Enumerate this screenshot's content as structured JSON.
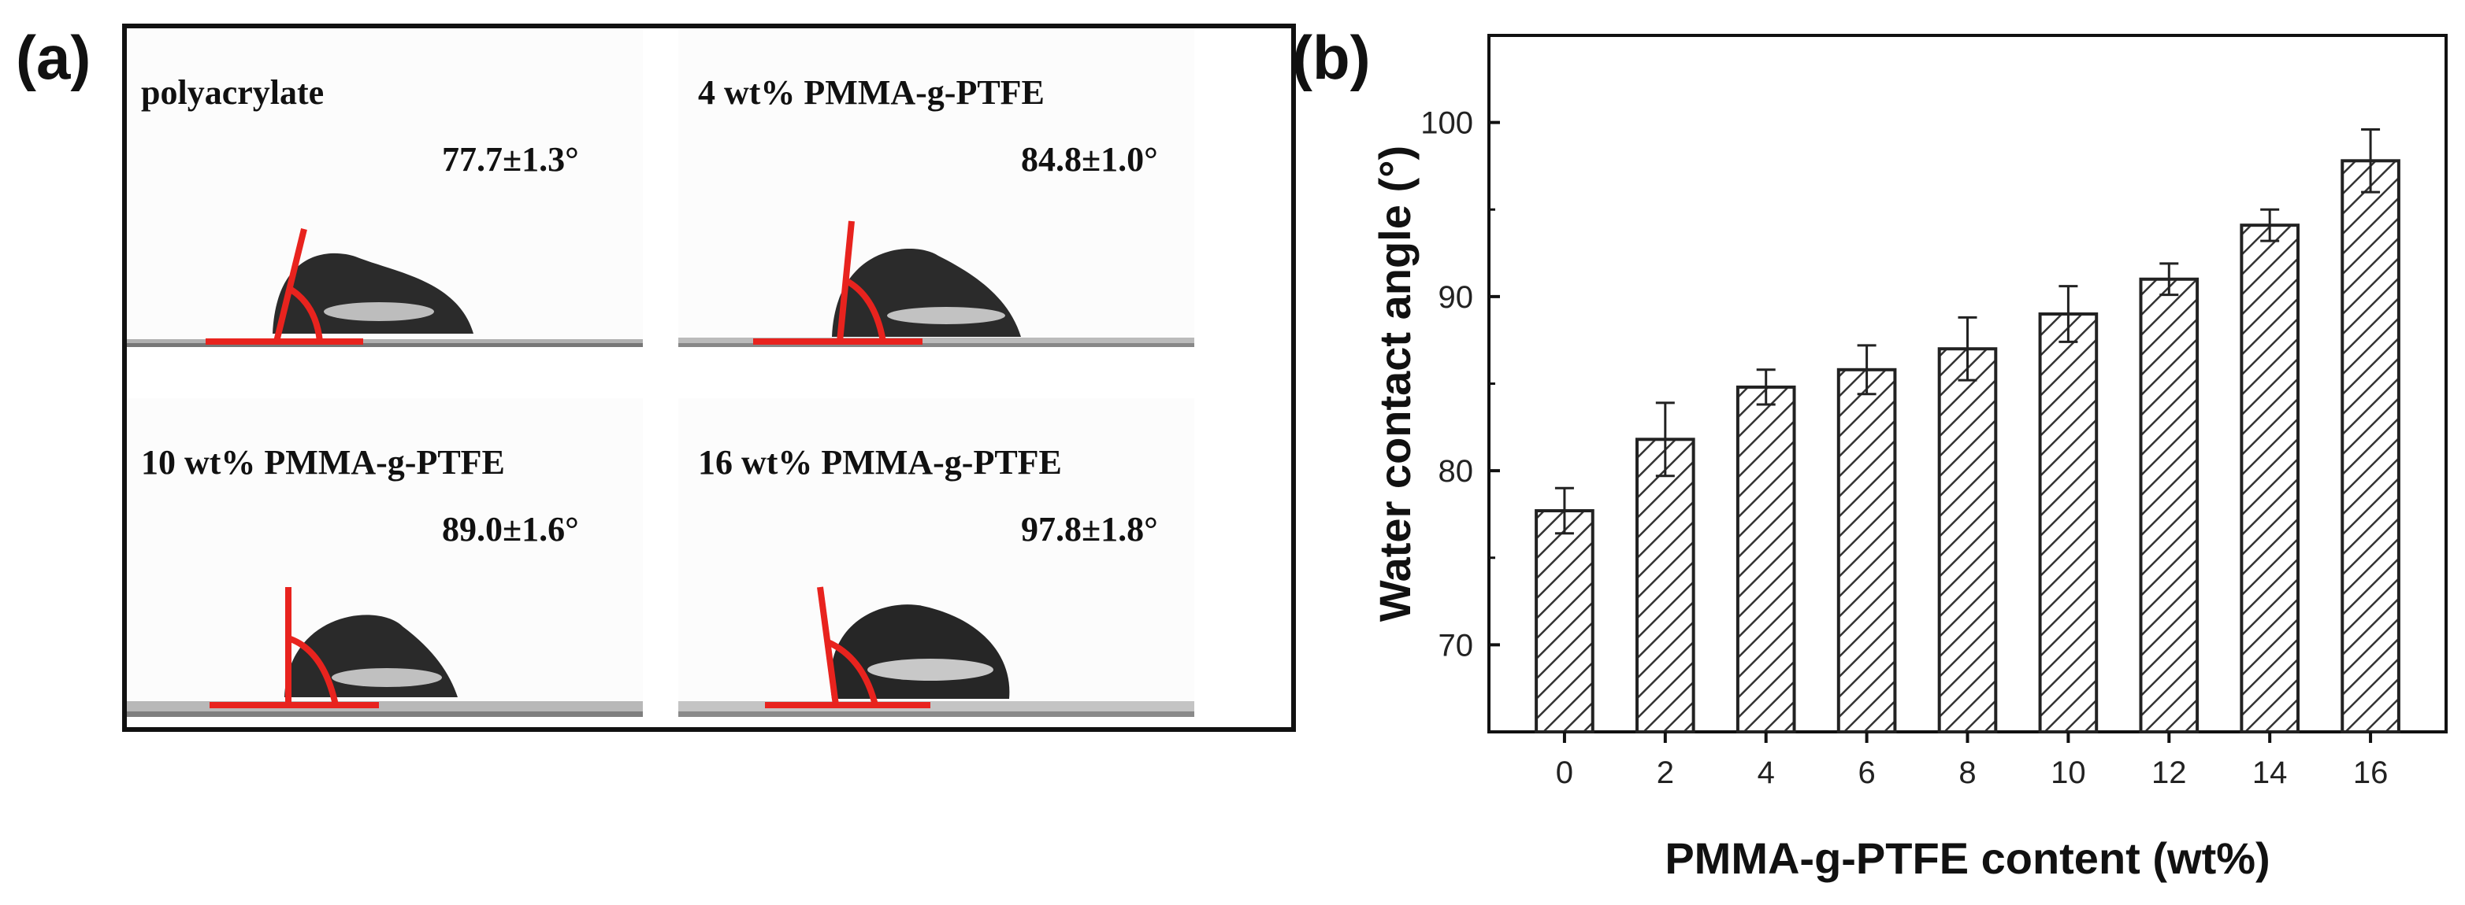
{
  "panel_labels": {
    "a": "(a)",
    "b": "(b)"
  },
  "photos": [
    {
      "name": "polyacrylate",
      "angle": "77.7±1.3°"
    },
    {
      "name": "4 wt% PMMA-g-PTFE",
      "angle": "84.8±1.0°"
    },
    {
      "name": "10 wt% PMMA-g-PTFE",
      "angle": "89.0±1.6°"
    },
    {
      "name": "16 wt% PMMA-g-PTFE",
      "angle": "97.8±1.8°"
    }
  ],
  "colors": {
    "marker_line": "#e8231e",
    "droplet": "#2a2a2a",
    "substrate": "#8c8c8c",
    "axis": "#111111"
  },
  "chart_data": {
    "type": "bar",
    "categories": [
      "0",
      "2",
      "4",
      "6",
      "8",
      "10",
      "12",
      "14",
      "16"
    ],
    "values": [
      77.7,
      81.8,
      84.8,
      85.8,
      87.0,
      89.0,
      91.0,
      94.1,
      97.8
    ],
    "errors": [
      1.3,
      2.1,
      1.0,
      1.4,
      1.8,
      1.6,
      0.9,
      0.9,
      1.8
    ],
    "xlabel": "PMMA-g-PTFE content (wt%)",
    "ylabel": "Water contact angle (°)",
    "ylim": [
      65,
      105
    ],
    "yticks": [
      70,
      80,
      90,
      100
    ],
    "bar_fill": "hatched"
  }
}
